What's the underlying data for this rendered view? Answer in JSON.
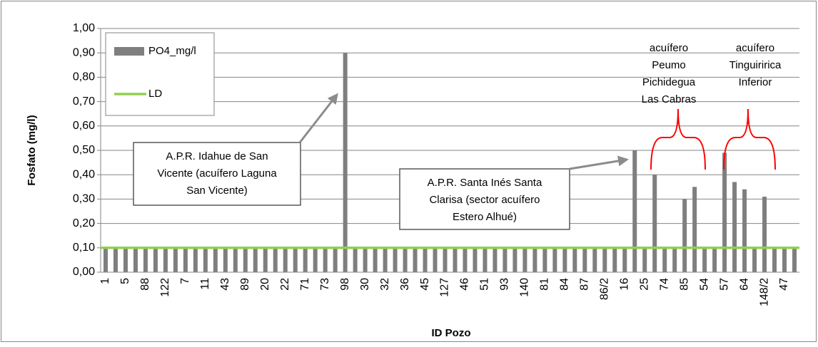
{
  "chart_data": {
    "type": "bar",
    "y_label": "Fosfato (mg/l)",
    "x_label": "ID Pozo",
    "categories": [
      "1",
      null,
      "5",
      null,
      "88",
      null,
      "122",
      null,
      "7",
      null,
      "11",
      null,
      "43",
      null,
      "89",
      null,
      "20",
      null,
      "22",
      null,
      "71",
      null,
      "73",
      null,
      "98",
      null,
      "30",
      null,
      "32",
      null,
      "36",
      null,
      "45",
      null,
      "127",
      null,
      "46",
      null,
      "51",
      null,
      "93",
      null,
      "140",
      null,
      "81",
      null,
      "84",
      null,
      "87",
      null,
      "86/2",
      null,
      "16",
      null,
      "25",
      null,
      "74",
      null,
      "85",
      null,
      "54",
      null,
      "57",
      null,
      "64",
      null,
      "148/2",
      null,
      "47",
      null
    ],
    "series": [
      {
        "name": "PO4_mg/l",
        "color": "#7f7f7f",
        "kind": "bar",
        "values": [
          0.1,
          0.1,
          0.1,
          0.1,
          0.1,
          0.1,
          0.1,
          0.1,
          0.1,
          0.1,
          0.1,
          0.1,
          0.1,
          0.1,
          0.1,
          0.1,
          0.1,
          0.1,
          0.1,
          0.1,
          0.1,
          0.1,
          0.1,
          0.1,
          0.9,
          0.1,
          0.1,
          0.1,
          0.1,
          0.1,
          0.1,
          0.1,
          0.1,
          0.1,
          0.1,
          0.1,
          0.1,
          0.1,
          0.1,
          0.1,
          0.1,
          0.1,
          0.1,
          0.1,
          0.1,
          0.1,
          0.1,
          0.1,
          0.1,
          0.1,
          0.1,
          0.1,
          0.1,
          0.5,
          0.1,
          0.4,
          0.1,
          0.1,
          0.3,
          0.35,
          0.1,
          0.1,
          0.49,
          0.37,
          0.34,
          0.1,
          0.31,
          0.1,
          0.1,
          0.1
        ]
      },
      {
        "name": "LD",
        "color": "#92d050",
        "kind": "line",
        "values": [
          0.1,
          0.1,
          0.1,
          0.1,
          0.1,
          0.1,
          0.1,
          0.1,
          0.1,
          0.1,
          0.1,
          0.1,
          0.1,
          0.1,
          0.1,
          0.1,
          0.1,
          0.1,
          0.1,
          0.1,
          0.1,
          0.1,
          0.1,
          0.1,
          0.1,
          0.1,
          0.1,
          0.1,
          0.1,
          0.1,
          0.1,
          0.1,
          0.1,
          0.1,
          0.1,
          0.1,
          0.1,
          0.1,
          0.1,
          0.1,
          0.1,
          0.1,
          0.1,
          0.1,
          0.1,
          0.1,
          0.1,
          0.1,
          0.1,
          0.1,
          0.1,
          0.1,
          0.1,
          0.1,
          0.1,
          0.1,
          0.1,
          0.1,
          0.1,
          0.1,
          0.1,
          0.1,
          0.1,
          0.1,
          0.1,
          0.1,
          0.1,
          0.1,
          0.1,
          0.1
        ]
      }
    ],
    "ylim": [
      0,
      1
    ],
    "yticks": [
      {
        "value": 0,
        "label": "0,00"
      },
      {
        "value": 0.1,
        "label": "0,10"
      },
      {
        "value": 0.2,
        "label": "0,20"
      },
      {
        "value": 0.3,
        "label": "0,30"
      },
      {
        "value": 0.4,
        "label": "0,40"
      },
      {
        "value": 0.5,
        "label": "0,50"
      },
      {
        "value": 0.6,
        "label": "0,60"
      },
      {
        "value": 0.7,
        "label": "0,70"
      },
      {
        "value": 0.8,
        "label": "0,80"
      },
      {
        "value": 0.9,
        "label": "0,90"
      },
      {
        "value": 1,
        "label": "1,00"
      }
    ],
    "grid": true,
    "legend": "upper left",
    "annotations": [
      {
        "lines": [
          "A.P.R. Idahue de San",
          "Vicente (acuífero  Laguna",
          "San Vicente)"
        ]
      },
      {
        "lines": [
          "A.P.R. Santa Inés Santa",
          "Clarisa (sector acuífero",
          "Estero Alhué)"
        ]
      },
      {
        "lines": [
          "acuífero",
          "Peumo",
          "Pichidegua",
          "Las Cabras"
        ]
      },
      {
        "lines": [
          "acuífero",
          "Tinguiririca",
          "Inferior"
        ]
      }
    ]
  }
}
